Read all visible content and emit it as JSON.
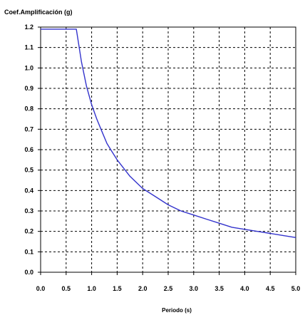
{
  "chart_data": {
    "type": "line",
    "ylabel": "Coef.Amplificación (g)",
    "xlabel": "Periodo (s)",
    "xlim": [
      0,
      5
    ],
    "ylim": [
      0,
      1.2
    ],
    "x_ticks": [
      "0.0",
      "0.5",
      "1.0",
      "1.5",
      "2.0",
      "2.5",
      "3.0",
      "3.5",
      "4.0",
      "4.5",
      "5.0"
    ],
    "y_ticks": [
      "0.0",
      "0.1",
      "0.2",
      "0.3",
      "0.4",
      "0.5",
      "0.6",
      "0.7",
      "0.8",
      "0.9",
      "1.0",
      "1.1",
      "1.2"
    ],
    "grid": true,
    "series": [
      {
        "color": "#3333cc",
        "x": [
          0.0,
          0.2,
          0.4,
          0.6,
          0.7,
          0.8,
          0.9,
          1.0,
          1.1,
          1.2,
          1.3,
          1.4,
          1.5,
          1.75,
          2.0,
          2.25,
          2.5,
          2.75,
          3.0,
          3.25,
          3.5,
          3.75,
          4.0,
          4.25,
          4.5,
          4.75,
          5.0
        ],
        "y": [
          1.19,
          1.19,
          1.19,
          1.19,
          1.19,
          1.03,
          0.91,
          0.82,
          0.75,
          0.69,
          0.63,
          0.59,
          0.55,
          0.47,
          0.41,
          0.37,
          0.33,
          0.3,
          0.28,
          0.26,
          0.24,
          0.22,
          0.21,
          0.2,
          0.19,
          0.18,
          0.17
        ]
      }
    ]
  }
}
